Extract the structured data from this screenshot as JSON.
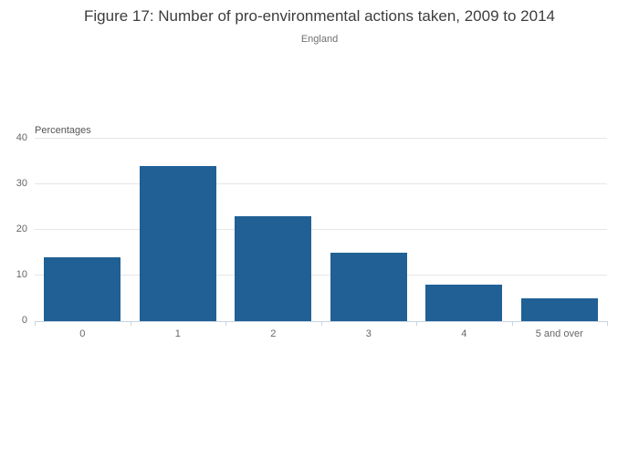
{
  "chart_data": {
    "type": "bar",
    "title": "Figure 17: Number of pro-environmental actions taken, 2009 to 2014",
    "subtitle": "England",
    "unit_label": "Percentages",
    "categories": [
      "0",
      "1",
      "2",
      "3",
      "4",
      "5 and over"
    ],
    "values": [
      14,
      34,
      23,
      15,
      8,
      5
    ],
    "xlabel": "",
    "ylabel": "Percentages",
    "ylim": [
      0,
      40
    ],
    "yticks": [
      0,
      10,
      20,
      30,
      40
    ],
    "grid": true,
    "legend": "none",
    "colors": {
      "bar": "#206095",
      "gridline": "#e6e6e6",
      "axis_line": "#c8d4e3",
      "tick_label": "#666666",
      "title": "#3d3d3d",
      "subtitle": "#6f6f6f"
    }
  }
}
